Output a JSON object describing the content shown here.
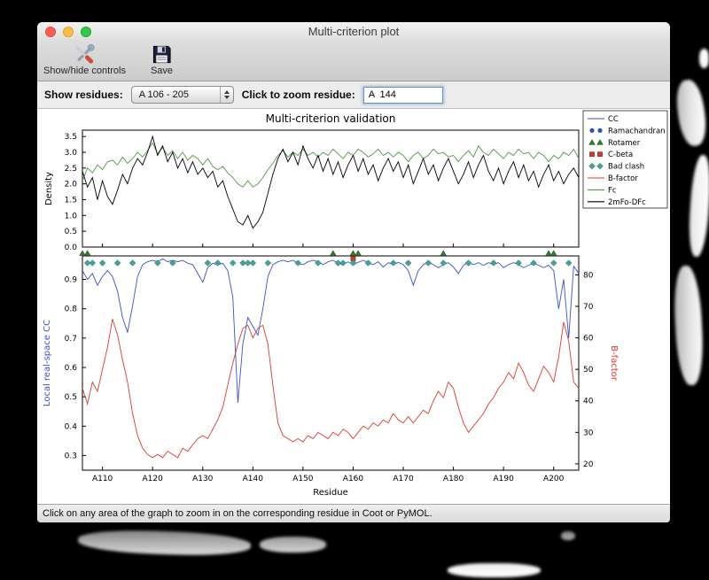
{
  "window": {
    "title": "Multi-criterion plot",
    "toolbar": {
      "show_hide_label": "Show/hide controls",
      "save_label": "Save"
    },
    "controls": {
      "show_residues_label": "Show residues:",
      "residue_range_value": "A 106 - 205",
      "zoom_residue_label": "Click to zoom residue:",
      "zoom_residue_value": "A  144"
    },
    "status_bar": "Click on any area of the graph to zoom in on the corresponding residue in Coot or PyMOL."
  },
  "chart_data": {
    "type": "line",
    "title": "Multi-criterion validation",
    "x_label": "Residue",
    "x_start": 106,
    "x_end": 205,
    "x_ticks": [
      110,
      120,
      130,
      140,
      150,
      160,
      170,
      180,
      190,
      200
    ],
    "x_tick_labels": [
      "A110",
      "A120",
      "A130",
      "A140",
      "A150",
      "A160",
      "A170",
      "A180",
      "A190",
      "A200"
    ],
    "top": {
      "ylabel": "Density",
      "ylim": [
        0.0,
        3.7
      ],
      "yticks": [
        0.0,
        0.5,
        1.0,
        1.5,
        2.0,
        2.5,
        3.0,
        3.5
      ],
      "series": [
        {
          "name": "Fc",
          "color": "#4e9a40",
          "values": [
            2.1,
            2.5,
            2.35,
            2.6,
            2.45,
            2.7,
            2.75,
            2.6,
            2.85,
            2.65,
            2.8,
            3.0,
            2.85,
            3.05,
            3.3,
            2.95,
            3.15,
            2.9,
            3.05,
            2.8,
            3.0,
            2.75,
            2.9,
            2.8,
            2.6,
            2.8,
            2.55,
            2.45,
            2.55,
            2.35,
            2.2,
            2.0,
            1.9,
            2.1,
            1.9,
            2.0,
            2.2,
            2.45,
            2.65,
            2.9,
            3.05,
            2.85,
            3.0,
            2.9,
            3.1,
            2.9,
            3.0,
            2.85,
            3.0,
            2.9,
            3.1,
            2.95,
            2.8,
            3.0,
            2.9,
            3.1,
            3.0,
            2.85,
            2.95,
            3.1,
            2.9,
            3.0,
            2.85,
            3.0,
            2.9,
            2.7,
            2.9,
            3.0,
            2.8,
            2.9,
            3.1,
            2.95,
            3.0,
            2.85,
            2.9,
            2.7,
            2.9,
            3.05,
            2.85,
            3.2,
            3.0,
            2.9,
            3.1,
            2.95,
            2.8,
            3.0,
            2.9,
            3.1,
            2.95,
            3.0,
            2.8,
            3.0,
            2.9,
            2.7,
            2.9,
            2.8,
            3.0,
            2.9,
            3.1,
            2.8
          ]
        },
        {
          "name": "2mFo-DFc",
          "color": "#000000",
          "values": [
            2.4,
            1.9,
            2.2,
            1.5,
            2.1,
            1.6,
            1.35,
            1.8,
            2.3,
            2.0,
            2.5,
            2.8,
            2.6,
            3.0,
            3.5,
            2.9,
            3.2,
            2.7,
            3.0,
            2.5,
            2.8,
            2.35,
            2.7,
            2.3,
            2.5,
            2.2,
            2.4,
            1.9,
            2.1,
            1.6,
            1.2,
            0.8,
            0.7,
            1.0,
            0.6,
            0.8,
            1.1,
            1.7,
            2.3,
            2.8,
            3.1,
            2.7,
            3.0,
            2.6,
            3.2,
            2.8,
            2.5,
            2.9,
            2.4,
            2.8,
            2.3,
            2.7,
            2.2,
            2.6,
            2.9,
            2.4,
            2.8,
            2.3,
            2.6,
            2.1,
            2.5,
            2.8,
            2.4,
            2.7,
            2.2,
            2.6,
            2.0,
            2.4,
            2.8,
            2.3,
            2.6,
            2.1,
            2.5,
            2.8,
            2.4,
            2.0,
            2.3,
            2.7,
            2.2,
            2.6,
            2.9,
            2.4,
            2.1,
            2.5,
            2.0,
            2.4,
            2.7,
            2.2,
            2.6,
            2.1,
            2.4,
            1.9,
            2.3,
            2.6,
            2.1,
            2.4,
            2.0,
            2.3,
            2.5,
            2.2
          ]
        }
      ]
    },
    "bottom": {
      "ylabel_left": "Local real-space CC",
      "ylabel_left_color": "#3a52c8",
      "ylim_left": [
        0.25,
        0.98
      ],
      "yticks_left": [
        0.3,
        0.4,
        0.5,
        0.6,
        0.7,
        0.8,
        0.9
      ],
      "ylabel_right": "B-factor",
      "ylabel_right_color": "#e0382c",
      "ylim_right": [
        18,
        86
      ],
      "yticks_right": [
        20,
        30,
        40,
        50,
        60,
        70,
        80
      ],
      "series_left": {
        "name": "CC",
        "color": "#3a52c8",
        "values": [
          0.93,
          0.9,
          0.92,
          0.88,
          0.91,
          0.93,
          0.91,
          0.86,
          0.77,
          0.72,
          0.81,
          0.91,
          0.95,
          0.96,
          0.965,
          0.96,
          0.97,
          0.96,
          0.965,
          0.96,
          0.965,
          0.955,
          0.95,
          0.92,
          0.89,
          0.94,
          0.955,
          0.95,
          0.955,
          0.93,
          0.84,
          0.48,
          0.68,
          0.77,
          0.74,
          0.71,
          0.8,
          0.91,
          0.95,
          0.96,
          0.965,
          0.96,
          0.965,
          0.955,
          0.95,
          0.96,
          0.965,
          0.96,
          0.95,
          0.96,
          0.965,
          0.955,
          0.95,
          0.96,
          0.95,
          0.958,
          0.965,
          0.957,
          0.95,
          0.96,
          0.942,
          0.957,
          0.95,
          0.958,
          0.95,
          0.93,
          0.88,
          0.93,
          0.95,
          0.958,
          0.95,
          0.94,
          0.95,
          0.957,
          0.942,
          0.92,
          0.948,
          0.958,
          0.95,
          0.957,
          0.948,
          0.957,
          0.95,
          0.957,
          0.94,
          0.95,
          0.957,
          0.95,
          0.94,
          0.948,
          0.955,
          0.948,
          0.94,
          0.948,
          0.93,
          0.8,
          0.9,
          0.7,
          0.945,
          0.92
        ]
      },
      "series_right": {
        "name": "B-factor",
        "color": "#e0382c",
        "values": [
          44,
          39,
          46,
          43,
          50,
          57,
          66,
          61,
          53,
          46,
          36,
          29,
          25,
          23,
          22,
          23,
          22,
          24,
          23,
          22,
          25,
          24,
          26,
          28,
          29,
          28,
          31,
          34,
          38,
          45,
          52,
          58,
          63,
          64,
          60,
          63,
          64,
          58,
          45,
          33,
          29,
          28,
          27,
          28,
          27,
          29,
          28,
          30,
          29,
          28,
          30,
          29,
          31,
          30,
          28,
          30,
          32,
          31,
          33,
          32,
          34,
          33,
          36,
          34,
          33,
          35,
          33,
          35,
          37,
          36,
          40,
          43,
          41,
          46,
          44,
          38,
          33,
          30,
          32,
          34,
          36,
          39,
          41,
          44,
          46,
          49,
          47,
          52,
          49,
          45,
          43,
          47,
          51,
          49,
          46,
          54,
          65,
          59,
          46,
          44
        ]
      },
      "outlier_markers": [
        {
          "name": "Ramachandran",
          "shape": "circle",
          "color": "#2c50c8",
          "residues": []
        },
        {
          "name": "Rotamer",
          "shape": "triangle",
          "color": "#2f7d32",
          "residues": [
            106,
            107,
            156,
            160,
            161,
            178,
            199,
            200
          ]
        },
        {
          "name": "C-beta",
          "shape": "square",
          "color": "#cc3a2e",
          "residues": [
            160
          ]
        },
        {
          "name": "Bad clash",
          "shape": "diamond",
          "color": "#45a39b",
          "residues": [
            107,
            108,
            110,
            113,
            116,
            121,
            124,
            131,
            133,
            136,
            138,
            139,
            140,
            143,
            149,
            153,
            157,
            158,
            160,
            163,
            168,
            171,
            175,
            178,
            183,
            188,
            193,
            196,
            200,
            203
          ]
        }
      ]
    },
    "legend": {
      "items": [
        {
          "label": "CC",
          "glyph": "line",
          "color": "#3a52c8"
        },
        {
          "label": "Ramachandran",
          "glyph": "circle",
          "color": "#2c50c8"
        },
        {
          "label": "Rotamer",
          "glyph": "triangle",
          "color": "#2f7d32"
        },
        {
          "label": "C-beta",
          "glyph": "square",
          "color": "#cc3a2e"
        },
        {
          "label": "Bad clash",
          "glyph": "diamond",
          "color": "#45a39b"
        },
        {
          "label": "B-factor",
          "glyph": "line",
          "color": "#e0382c"
        },
        {
          "label": "Fc",
          "glyph": "line",
          "color": "#4e9a40"
        },
        {
          "label": "2mFo-DFc",
          "glyph": "line",
          "color": "#000000"
        }
      ]
    }
  }
}
